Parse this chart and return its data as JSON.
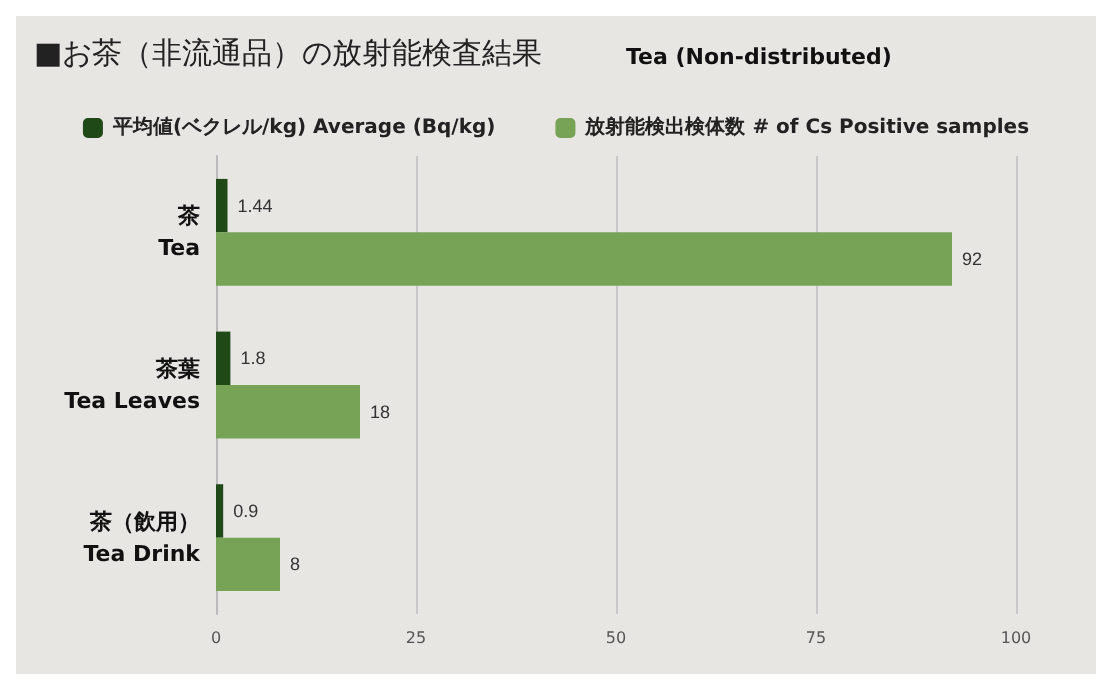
{
  "chart_data": {
    "type": "bar",
    "orientation": "horizontal",
    "title": "■お茶（非流通品）の放射能検査結果",
    "subtitle": "Tea (Non-distributed)",
    "categories": [
      "茶\nTea",
      "茶葉\nTea Leaves",
      "茶（飲用）\nTea Drink"
    ],
    "series": [
      {
        "name": "平均値(ベクレル/kg) Average (Bq/kg)",
        "color": "#1f4a18",
        "values": [
          1.44,
          1.8,
          0.9
        ]
      },
      {
        "name": "放射能検出検体数 # of Cs Positive samples",
        "color": "#77a356",
        "values": [
          92,
          18,
          8
        ]
      }
    ],
    "xlim": [
      0,
      100
    ],
    "xticks": [
      0,
      25,
      50,
      75,
      100
    ],
    "grid": "x",
    "legend": "top",
    "data_labels": true
  }
}
